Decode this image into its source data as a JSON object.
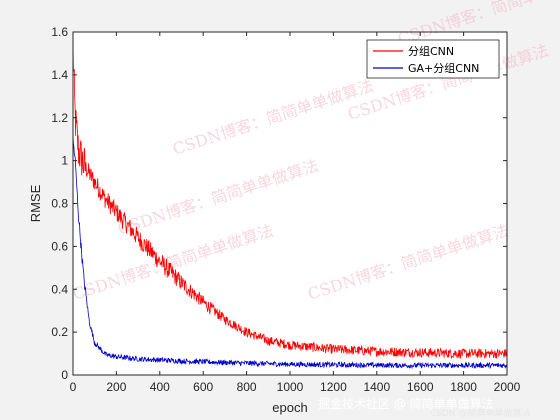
{
  "chart_data": {
    "type": "line",
    "xlabel": "epoch",
    "ylabel": "RMSE",
    "xlim": [
      0,
      2000
    ],
    "ylim": [
      0,
      1.6
    ],
    "xticks": [
      0,
      200,
      400,
      600,
      800,
      1000,
      1200,
      1400,
      1600,
      1800,
      2000
    ],
    "yticks": [
      0,
      0.2,
      0.4,
      0.6,
      0.8,
      1,
      1.2,
      1.4,
      1.6
    ],
    "xtick_labels": [
      "0",
      "200",
      "400",
      "600",
      "800",
      "1000",
      "1200",
      "1400",
      "1600",
      "1800",
      "2000"
    ],
    "ytick_labels": [
      "0",
      "0.2",
      "0.4",
      "0.6",
      "0.8",
      "1",
      "1.2",
      "1.4",
      "1.6"
    ],
    "grid": false,
    "legend_position": "top-right",
    "series": [
      {
        "name": "分组CNN",
        "color": "#ff0000",
        "x": [
          0,
          10,
          25,
          50,
          100,
          150,
          200,
          300,
          400,
          500,
          600,
          700,
          800,
          900,
          1000,
          1200,
          1400,
          1600,
          1800,
          2000
        ],
        "y": [
          1.52,
          1.2,
          1.05,
          0.98,
          0.9,
          0.82,
          0.76,
          0.64,
          0.53,
          0.43,
          0.34,
          0.26,
          0.2,
          0.16,
          0.14,
          0.12,
          0.11,
          0.105,
          0.1,
          0.1
        ],
        "noise": 0.045
      },
      {
        "name": "GA+分组CNN",
        "color": "#0000cc",
        "x": [
          0,
          10,
          25,
          50,
          75,
          100,
          150,
          200,
          300,
          500,
          800,
          1000,
          1500,
          2000
        ],
        "y": [
          1.1,
          1.0,
          0.75,
          0.45,
          0.25,
          0.15,
          0.095,
          0.085,
          0.075,
          0.065,
          0.055,
          0.05,
          0.045,
          0.045
        ],
        "noise": 0.012
      }
    ]
  },
  "watermarks": [
    "CSDN博客：简简单单做算法",
    "CSDN博客：简简单单做算法",
    "CSDN博客：简简单单做算法",
    "CSDN博客：简简单单做算法",
    "CSDN博客：简简单单做算法",
    "CSDN博客：简简单单做算法"
  ],
  "credit": "掘金技术社区 @ 简简单单做算法",
  "credit_small": "CSDN @简简单单做算法"
}
